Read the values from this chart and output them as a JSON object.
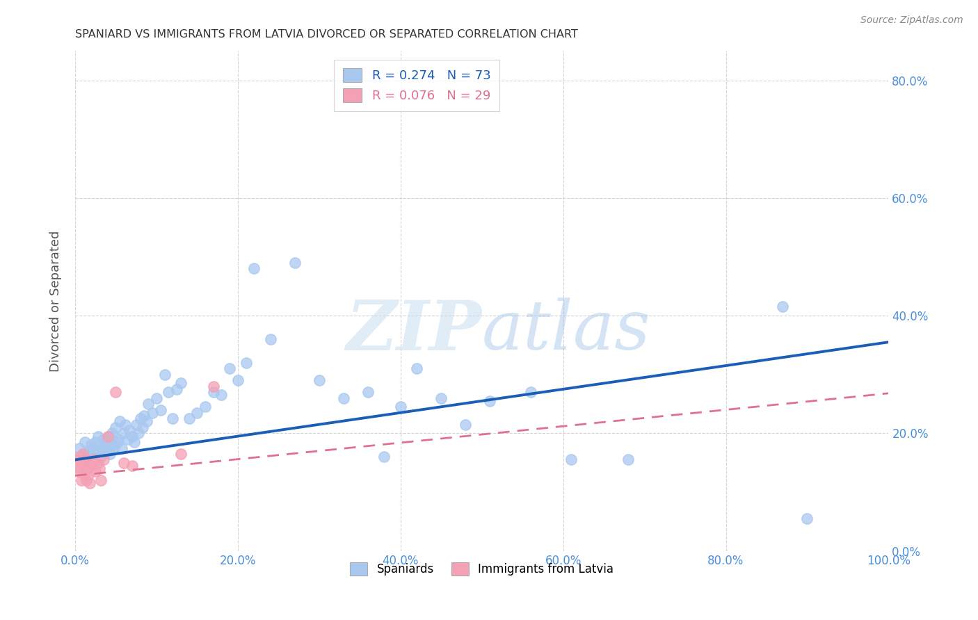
{
  "title": "SPANIARD VS IMMIGRANTS FROM LATVIA DIVORCED OR SEPARATED CORRELATION CHART",
  "source": "Source: ZipAtlas.com",
  "ylabel": "Divorced or Separated",
  "xlim": [
    0,
    1.0
  ],
  "ylim": [
    0,
    0.85
  ],
  "xticks": [
    0.0,
    0.2,
    0.4,
    0.6,
    0.8,
    1.0
  ],
  "yticks": [
    0.0,
    0.2,
    0.4,
    0.6,
    0.8
  ],
  "xticklabels": [
    "0.0%",
    "20.0%",
    "40.0%",
    "60.0%",
    "80.0%",
    "100.0%"
  ],
  "yticklabels_right": [
    "0.0%",
    "20.0%",
    "40.0%",
    "60.0%",
    "80.0%"
  ],
  "blue_color": "#a8c8f0",
  "pink_color": "#f4a0b5",
  "blue_line_color": "#1a5eb8",
  "pink_line_color": "#e07090",
  "legend_blue_label": "R = 0.274   N = 73",
  "legend_pink_label": "R = 0.076   N = 29",
  "scatter_blue_x": [
    0.005,
    0.01,
    0.012,
    0.015,
    0.018,
    0.02,
    0.022,
    0.024,
    0.025,
    0.028,
    0.03,
    0.032,
    0.033,
    0.035,
    0.037,
    0.038,
    0.04,
    0.042,
    0.043,
    0.045,
    0.047,
    0.048,
    0.05,
    0.052,
    0.053,
    0.055,
    0.057,
    0.06,
    0.062,
    0.065,
    0.067,
    0.07,
    0.073,
    0.075,
    0.078,
    0.08,
    0.083,
    0.085,
    0.088,
    0.09,
    0.095,
    0.1,
    0.105,
    0.11,
    0.115,
    0.12,
    0.125,
    0.13,
    0.14,
    0.15,
    0.16,
    0.17,
    0.18,
    0.19,
    0.2,
    0.21,
    0.22,
    0.24,
    0.27,
    0.3,
    0.33,
    0.36,
    0.38,
    0.4,
    0.42,
    0.45,
    0.48,
    0.51,
    0.56,
    0.61,
    0.68,
    0.87,
    0.9
  ],
  "scatter_blue_y": [
    0.175,
    0.165,
    0.185,
    0.16,
    0.17,
    0.18,
    0.175,
    0.165,
    0.185,
    0.195,
    0.17,
    0.16,
    0.18,
    0.19,
    0.175,
    0.185,
    0.17,
    0.195,
    0.165,
    0.2,
    0.18,
    0.175,
    0.21,
    0.185,
    0.19,
    0.22,
    0.175,
    0.2,
    0.215,
    0.19,
    0.205,
    0.195,
    0.185,
    0.215,
    0.2,
    0.225,
    0.21,
    0.23,
    0.22,
    0.25,
    0.235,
    0.26,
    0.24,
    0.3,
    0.27,
    0.225,
    0.275,
    0.285,
    0.225,
    0.235,
    0.245,
    0.27,
    0.265,
    0.31,
    0.29,
    0.32,
    0.48,
    0.36,
    0.49,
    0.29,
    0.26,
    0.27,
    0.16,
    0.245,
    0.31,
    0.26,
    0.215,
    0.255,
    0.27,
    0.155,
    0.155,
    0.415,
    0.055
  ],
  "scatter_pink_x": [
    0.003,
    0.004,
    0.005,
    0.006,
    0.007,
    0.008,
    0.009,
    0.01,
    0.011,
    0.012,
    0.013,
    0.014,
    0.015,
    0.016,
    0.017,
    0.018,
    0.02,
    0.022,
    0.025,
    0.028,
    0.03,
    0.032,
    0.035,
    0.04,
    0.05,
    0.06,
    0.07,
    0.13,
    0.17
  ],
  "scatter_pink_y": [
    0.155,
    0.135,
    0.16,
    0.14,
    0.15,
    0.12,
    0.165,
    0.145,
    0.13,
    0.155,
    0.14,
    0.12,
    0.145,
    0.13,
    0.15,
    0.115,
    0.145,
    0.155,
    0.135,
    0.15,
    0.14,
    0.12,
    0.155,
    0.195,
    0.27,
    0.15,
    0.145,
    0.165,
    0.28
  ],
  "blue_trend_x": [
    0.0,
    1.0
  ],
  "blue_trend_y": [
    0.155,
    0.355
  ],
  "pink_trend_x": [
    0.0,
    1.0
  ],
  "pink_trend_y": [
    0.128,
    0.268
  ],
  "watermark_zip": "ZIP",
  "watermark_atlas": "atlas",
  "bg_color": "#ffffff",
  "grid_color": "#c8c8c8",
  "title_color": "#333333",
  "tick_color": "#4a90d9",
  "ylabel_color": "#555555"
}
